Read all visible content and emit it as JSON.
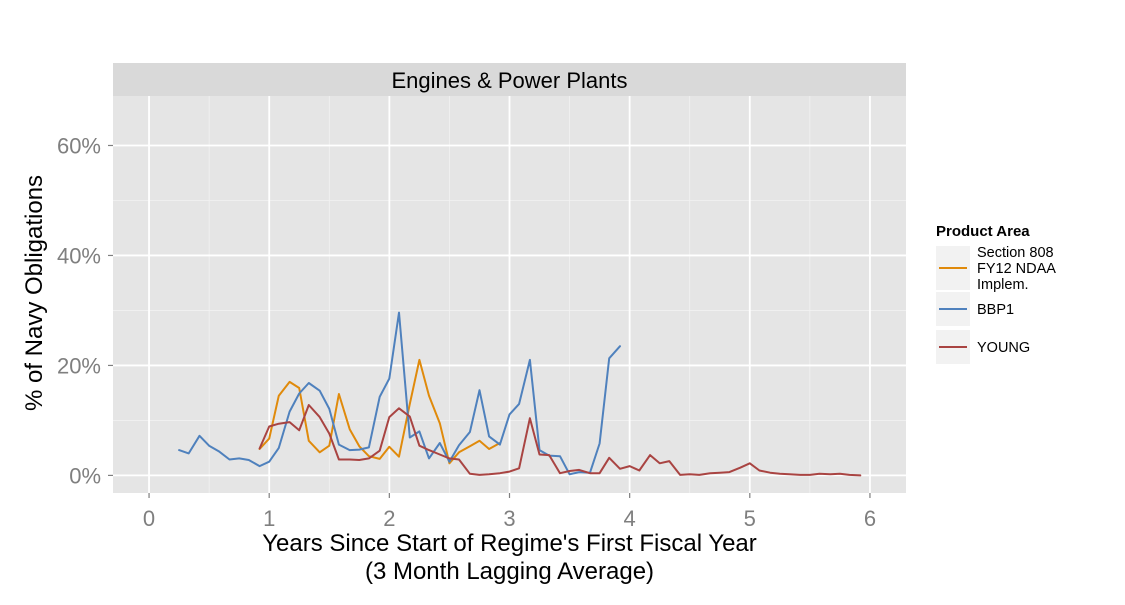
{
  "chart_data": {
    "type": "line",
    "panel_title": "Engines & Power Plants",
    "xlabel_line1": "Years Since Start of Regime's First Fiscal Year",
    "xlabel_line2": "(3 Month Lagging Average)",
    "ylabel": "% of Navy Obligations",
    "xlim": [
      -0.3,
      6.3
    ],
    "ylim": [
      -3.2,
      69
    ],
    "x_ticks": [
      0,
      1,
      2,
      3,
      4,
      5,
      6
    ],
    "x_tick_labels": [
      "0",
      "1",
      "2",
      "3",
      "4",
      "5",
      "6"
    ],
    "y_ticks": [
      0,
      20,
      40,
      60
    ],
    "y_tick_labels": [
      "0%",
      "20%",
      "40%",
      "60%"
    ],
    "grid": true,
    "legend": {
      "title": "Product Area",
      "position": "right",
      "entries": [
        {
          "lines": [
            "Section 808",
            "FY12 NDAA",
            "Implem."
          ]
        },
        {
          "lines": [
            "BBP1"
          ]
        },
        {
          "lines": [
            "YOUNG"
          ]
        }
      ]
    },
    "series": [
      {
        "name": "Section 808 FY12 NDAA Implem.",
        "color": "#e08a0b",
        "x": [
          0.92,
          1.0,
          1.08,
          1.17,
          1.25,
          1.33,
          1.42,
          1.5,
          1.58,
          1.67,
          1.75,
          1.83,
          1.92,
          2.0,
          2.08,
          2.17,
          2.25,
          2.33,
          2.42,
          2.5,
          2.58,
          2.67,
          2.75,
          2.83,
          2.92
        ],
        "y": [
          4.8,
          6.7,
          14.5,
          17.0,
          15.9,
          6.3,
          4.2,
          5.4,
          14.8,
          8.4,
          5.3,
          3.5,
          3.0,
          5.2,
          3.4,
          13.0,
          21.0,
          14.5,
          9.5,
          2.2,
          4.2,
          5.3,
          6.3,
          4.8,
          5.9
        ]
      },
      {
        "name": "BBP1",
        "color": "#4f81bd",
        "x": [
          0.25,
          0.33,
          0.42,
          0.5,
          0.58,
          0.67,
          0.75,
          0.83,
          0.92,
          1.0,
          1.08,
          1.17,
          1.25,
          1.33,
          1.42,
          1.5,
          1.58,
          1.67,
          1.75,
          1.83,
          1.92,
          2.0,
          2.08,
          2.17,
          2.25,
          2.33,
          2.42,
          2.5,
          2.58,
          2.67,
          2.75,
          2.83,
          2.92,
          3.0,
          3.08,
          3.17,
          3.25,
          3.33,
          3.42,
          3.5,
          3.58,
          3.67,
          3.75,
          3.83,
          3.92
        ],
        "y": [
          4.6,
          4.0,
          7.2,
          5.4,
          4.4,
          2.9,
          3.1,
          2.8,
          1.7,
          2.5,
          5.0,
          11.6,
          14.9,
          16.8,
          15.4,
          12.1,
          5.6,
          4.6,
          4.7,
          5.1,
          14.3,
          17.6,
          29.6,
          6.9,
          8.0,
          3.1,
          5.9,
          2.5,
          5.5,
          7.9,
          15.5,
          7.1,
          5.6,
          11.1,
          13.0,
          21.0,
          4.6,
          3.6,
          3.5,
          0.2,
          0.6,
          0.5,
          5.8,
          21.3,
          23.5
        ]
      },
      {
        "name": "YOUNG",
        "color": "#a94442",
        "x": [
          0.92,
          1.0,
          1.08,
          1.17,
          1.25,
          1.33,
          1.42,
          1.5,
          1.58,
          1.67,
          1.75,
          1.83,
          1.92,
          2.0,
          2.08,
          2.17,
          2.25,
          2.33,
          2.42,
          2.5,
          2.58,
          2.67,
          2.75,
          2.83,
          2.92,
          3.0,
          3.08,
          3.17,
          3.25,
          3.33,
          3.42,
          3.5,
          3.58,
          3.67,
          3.75,
          3.83,
          3.92,
          4.0,
          4.08,
          4.17,
          4.25,
          4.33,
          4.42,
          4.5,
          4.58,
          4.67,
          4.75,
          4.83,
          4.92,
          5.0,
          5.08,
          5.17,
          5.25,
          5.33,
          5.42,
          5.5,
          5.58,
          5.67,
          5.75,
          5.83,
          5.92
        ],
        "y": [
          4.9,
          8.9,
          9.4,
          9.7,
          8.2,
          12.8,
          10.6,
          7.6,
          2.9,
          2.9,
          2.8,
          3.1,
          4.5,
          10.6,
          12.2,
          10.7,
          5.4,
          4.6,
          3.8,
          3.1,
          2.9,
          0.3,
          0.1,
          0.2,
          0.4,
          0.7,
          1.3,
          10.4,
          3.8,
          3.7,
          0.4,
          0.8,
          1.0,
          0.4,
          0.4,
          3.2,
          1.2,
          1.7,
          0.9,
          3.7,
          2.2,
          2.6,
          0.1,
          0.2,
          0.1,
          0.4,
          0.5,
          0.6,
          1.4,
          2.2,
          0.9,
          0.5,
          0.3,
          0.2,
          0.1,
          0.1,
          0.3,
          0.2,
          0.3,
          0.1,
          0.0
        ]
      }
    ]
  }
}
